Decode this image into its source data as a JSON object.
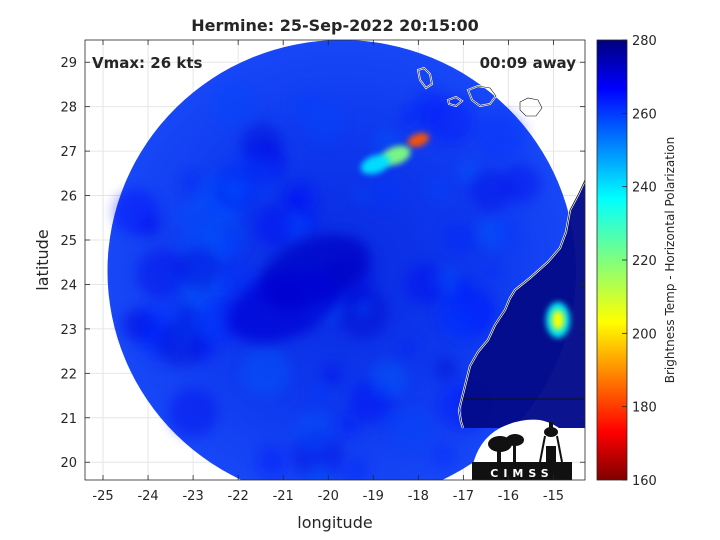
{
  "chart_data": {
    "type": "heatmap",
    "title": "Hermine: 25-Sep-2022 20:15:00",
    "xlabel": "longitude",
    "ylabel": "latitude",
    "xlim": [
      -25.4,
      -14.3
    ],
    "ylim": [
      19.6,
      29.5
    ],
    "xticks": [
      -25,
      -24,
      -23,
      -22,
      -21,
      -20,
      -19,
      -18,
      -17,
      -16,
      -15
    ],
    "yticks": [
      20,
      21,
      22,
      23,
      24,
      25,
      26,
      27,
      28,
      29
    ],
    "grid": true,
    "annotations": {
      "vmax": "Vmax: 26 kts",
      "time_away": "00:09 away"
    },
    "colorbar": {
      "label": "Brightness Temp - Horizontal Polarization",
      "colormap": "jet",
      "range": [
        160,
        280
      ],
      "ticks": [
        160,
        180,
        200,
        220,
        240,
        260,
        280
      ],
      "placement": "right"
    },
    "swath": {
      "center_lon": -19.7,
      "center_lat": 24.3,
      "radius_deg": 5.2,
      "background_value": 262,
      "features": [
        {
          "lon": -18.0,
          "lat": 27.25,
          "value": 185
        },
        {
          "lon": -18.5,
          "lat": 26.9,
          "value": 220
        },
        {
          "lon": -18.95,
          "lat": 26.7,
          "value": 238
        },
        {
          "lon": -14.9,
          "lat": 23.2,
          "value": 205
        },
        {
          "lon": -20.3,
          "lat": 24.3,
          "value": 272
        },
        {
          "lon": -21.0,
          "lat": 23.5,
          "value": 270
        }
      ]
    },
    "logo": "CIMSS"
  }
}
